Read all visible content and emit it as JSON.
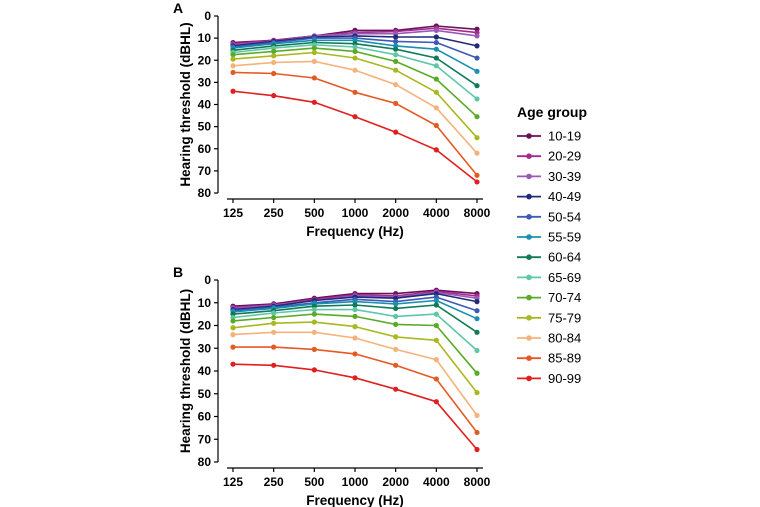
{
  "chart_data": [
    {
      "type": "line",
      "panel_label": "A",
      "categories": [
        "125",
        "250",
        "500",
        "1000",
        "2000",
        "4000",
        "8000"
      ],
      "xlabel": "Frequency (Hz)",
      "ylabel": "Hearing threshold (dBHL)",
      "ylim": [
        80,
        0
      ],
      "yticks": [
        "0",
        "10",
        "20",
        "30",
        "40",
        "50",
        "60",
        "70",
        "80"
      ],
      "y_inverted": true,
      "series": [
        {
          "name": "10-19",
          "color": "#6a0f5c",
          "values": [
            12,
            11,
            9,
            6.5,
            6.5,
            4.5,
            6
          ]
        },
        {
          "name": "20-29",
          "color": "#a52a8f",
          "values": [
            12.5,
            11,
            9,
            7.5,
            7,
            5.5,
            7.5
          ]
        },
        {
          "name": "30-39",
          "color": "#9b59b6",
          "values": [
            13,
            11.5,
            9,
            8,
            8,
            6.5,
            9
          ]
        },
        {
          "name": "40-49",
          "color": "#1f2a7a",
          "values": [
            13.5,
            11.5,
            9.5,
            9,
            9.5,
            9.5,
            13.5
          ]
        },
        {
          "name": "50-54",
          "color": "#3b5bb5",
          "values": [
            14,
            12,
            10,
            10,
            11.5,
            12,
            19
          ]
        },
        {
          "name": "55-59",
          "color": "#1a8fb0",
          "values": [
            14.5,
            12.5,
            11,
            11,
            13.5,
            15,
            25
          ]
        },
        {
          "name": "60-64",
          "color": "#0f7a57",
          "values": [
            15.5,
            13.5,
            12,
            12.5,
            15,
            19,
            31.5
          ]
        },
        {
          "name": "65-69",
          "color": "#5fc7a8",
          "values": [
            16.5,
            14.5,
            13,
            14,
            17.5,
            22.5,
            37.5
          ]
        },
        {
          "name": "70-74",
          "color": "#5aaa28",
          "values": [
            17.5,
            16,
            14.5,
            16,
            20.5,
            28.5,
            45.5
          ]
        },
        {
          "name": "75-79",
          "color": "#a8b820",
          "values": [
            19.5,
            18,
            16.5,
            19,
            24.5,
            34.5,
            55
          ]
        },
        {
          "name": "80-84",
          "color": "#f5b27a",
          "values": [
            22.5,
            21,
            20.5,
            24.5,
            31,
            41.5,
            62
          ]
        },
        {
          "name": "85-89",
          "color": "#e55a24",
          "values": [
            25.5,
            26,
            28,
            34.5,
            39.5,
            49.5,
            72
          ]
        },
        {
          "name": "90-99",
          "color": "#e02020",
          "values": [
            34,
            36,
            39,
            45.5,
            52.5,
            60.5,
            75
          ]
        }
      ]
    },
    {
      "type": "line",
      "panel_label": "B",
      "categories": [
        "125",
        "250",
        "500",
        "1000",
        "2000",
        "4000",
        "8000"
      ],
      "xlabel": "Frequency (Hz)",
      "ylabel": "Hearing threshold (dBHL)",
      "ylim": [
        80,
        0
      ],
      "yticks": [
        "0",
        "10",
        "20",
        "30",
        "40",
        "50",
        "60",
        "70",
        "80"
      ],
      "y_inverted": true,
      "series": [
        {
          "name": "10-19",
          "color": "#6a0f5c",
          "values": [
            11.5,
            10.5,
            8,
            6,
            6,
            4.5,
            6
          ]
        },
        {
          "name": "20-29",
          "color": "#a52a8f",
          "values": [
            12,
            11,
            8.5,
            6.5,
            7,
            5,
            7
          ]
        },
        {
          "name": "30-39",
          "color": "#9b59b6",
          "values": [
            12.5,
            11,
            9,
            7,
            7.5,
            5.5,
            8
          ]
        },
        {
          "name": "40-49",
          "color": "#1f2a7a",
          "values": [
            13,
            11.5,
            9,
            7.5,
            8,
            6,
            9.5
          ]
        },
        {
          "name": "50-54",
          "color": "#3b5bb5",
          "values": [
            13.5,
            12,
            10,
            8.5,
            9.5,
            7.5,
            13.5
          ]
        },
        {
          "name": "55-59",
          "color": "#1a8fb0",
          "values": [
            14,
            12.5,
            10.5,
            9.5,
            10.5,
            9,
            17
          ]
        },
        {
          "name": "60-64",
          "color": "#0f7a57",
          "values": [
            15,
            13.5,
            11.5,
            11,
            12.5,
            11,
            23
          ]
        },
        {
          "name": "65-69",
          "color": "#5fc7a8",
          "values": [
            16.5,
            14.5,
            13,
            13,
            16,
            15,
            31
          ]
        },
        {
          "name": "70-74",
          "color": "#5aaa28",
          "values": [
            18,
            16.5,
            15,
            16,
            19.5,
            20,
            41
          ]
        },
        {
          "name": "75-79",
          "color": "#a8b820",
          "values": [
            21,
            19,
            18.5,
            20.5,
            25,
            26.5,
            49.5
          ]
        },
        {
          "name": "80-84",
          "color": "#f5b27a",
          "values": [
            24,
            23,
            23,
            25.5,
            30.5,
            35,
            59.5
          ]
        },
        {
          "name": "85-89",
          "color": "#e55a24",
          "values": [
            29.5,
            29.5,
            30.5,
            32.5,
            37.5,
            43.5,
            67
          ]
        },
        {
          "name": "90-99",
          "color": "#e02020",
          "values": [
            37,
            37.5,
            39.5,
            43,
            48,
            53.5,
            74.5
          ]
        }
      ]
    }
  ],
  "legend": {
    "title": "Age group",
    "placement": "right",
    "items": [
      "10-19",
      "20-29",
      "30-39",
      "40-49",
      "50-54",
      "55-59",
      "60-64",
      "65-69",
      "70-74",
      "75-79",
      "80-84",
      "85-89",
      "90-99"
    ]
  }
}
